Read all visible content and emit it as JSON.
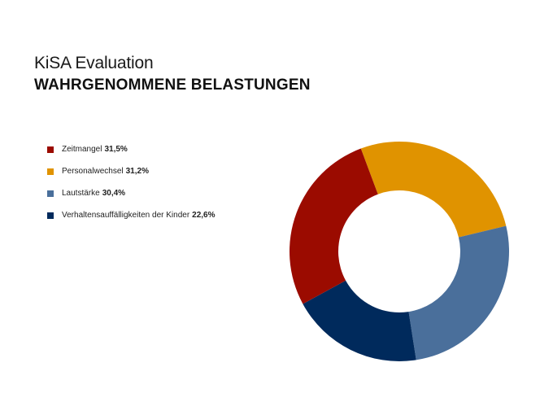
{
  "header": {
    "title": "KiSA Evaluation",
    "subtitle": "WAHRGENOMMENE BELASTUNGEN"
  },
  "colors": {
    "zeitmangel": "#9b0b00",
    "personalwechsel": "#e09300",
    "lautstaerke": "#4a6f9b",
    "verhalten": "#002a5c"
  },
  "chart_data": {
    "type": "pie",
    "variant": "donut",
    "title": "WAHRGENOMMENE BELASTUNGEN",
    "legend_position": "left",
    "categories": [
      "Zeitmangel",
      "Personalwechsel",
      "Lautstärke",
      "Verhaltensauffälligkeiten der Kinder"
    ],
    "values": [
      31.5,
      31.2,
      30.4,
      22.6
    ],
    "value_labels": [
      "31,5%",
      "31,2%",
      "30,4%",
      "22,6%"
    ],
    "colors": [
      "#9b0b00",
      "#e09300",
      "#4a6f9b",
      "#002a5c"
    ]
  }
}
